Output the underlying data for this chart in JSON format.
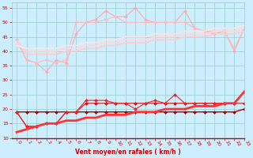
{
  "x": [
    0,
    1,
    2,
    3,
    4,
    5,
    6,
    7,
    8,
    9,
    10,
    11,
    12,
    13,
    14,
    15,
    16,
    17,
    18,
    19,
    20,
    21,
    22,
    23
  ],
  "series": [
    {
      "label": "line1_light_pink_jagged",
      "color": "#ffaaaa",
      "lw": 0.8,
      "marker": "D",
      "markersize": 2,
      "y": [
        44,
        37,
        36,
        33,
        37,
        36,
        46,
        50,
        51,
        54,
        52,
        52,
        55,
        51,
        50,
        50,
        50,
        54,
        48,
        47,
        46,
        47,
        40,
        48
      ]
    },
    {
      "label": "line2_lighter_pink_jagged",
      "color": "#ffbbbb",
      "lw": 0.8,
      "marker": "D",
      "markersize": 2,
      "y": [
        44,
        37,
        36,
        37,
        36,
        37,
        50,
        50,
        50,
        51,
        52,
        50,
        50,
        50,
        50,
        50,
        50,
        50,
        48,
        47,
        47,
        47,
        41,
        48
      ]
    },
    {
      "label": "line3_smooth1",
      "color": "#ffcccc",
      "lw": 1.2,
      "marker": null,
      "markersize": 0,
      "y": [
        44,
        39,
        39,
        39,
        39,
        40,
        40,
        41,
        41,
        42,
        42,
        43,
        43,
        43,
        44,
        44,
        44,
        45,
        45,
        45,
        46,
        46,
        46,
        47
      ]
    },
    {
      "label": "line4_smooth2",
      "color": "#ffd8d8",
      "lw": 1.2,
      "marker": null,
      "markersize": 0,
      "y": [
        43,
        40,
        40,
        40,
        40,
        41,
        41,
        42,
        42,
        43,
        43,
        44,
        44,
        44,
        45,
        45,
        45,
        46,
        46,
        46,
        47,
        47,
        47,
        48
      ]
    },
    {
      "label": "line5_smooth3",
      "color": "#ffe4e4",
      "lw": 1.2,
      "marker": null,
      "markersize": 0,
      "y": [
        42,
        41,
        41,
        41,
        41,
        42,
        42,
        43,
        43,
        44,
        44,
        45,
        45,
        45,
        46,
        46,
        46,
        47,
        47,
        47,
        48,
        48,
        48,
        49
      ]
    },
    {
      "label": "line6_dark_red_flat",
      "color": "#aa0000",
      "lw": 1.0,
      "marker": "D",
      "markersize": 2,
      "y": [
        19,
        19,
        19,
        19,
        19,
        19,
        19,
        19,
        19,
        19,
        19,
        19,
        19,
        19,
        19,
        19,
        19,
        19,
        19,
        19,
        19,
        19,
        19,
        20
      ]
    },
    {
      "label": "line7_red_mid1",
      "color": "#cc1111",
      "lw": 0.8,
      "marker": "D",
      "markersize": 2,
      "y": [
        19,
        14,
        14,
        15,
        15,
        19,
        19,
        22,
        22,
        22,
        22,
        22,
        22,
        22,
        22,
        22,
        22,
        22,
        22,
        22,
        22,
        22,
        22,
        22
      ]
    },
    {
      "label": "line8_red_mid2",
      "color": "#ee2222",
      "lw": 0.8,
      "marker": "D",
      "markersize": 2,
      "y": [
        19,
        14,
        14,
        15,
        15,
        19,
        19,
        23,
        23,
        23,
        22,
        22,
        20,
        22,
        23,
        22,
        25,
        22,
        22,
        22,
        22,
        22,
        22,
        26
      ]
    },
    {
      "label": "line9_red_diagonal",
      "color": "#ff3333",
      "lw": 2.0,
      "marker": null,
      "markersize": 0,
      "y": [
        12,
        13,
        14,
        15,
        15,
        16,
        16,
        17,
        17,
        18,
        18,
        18,
        19,
        19,
        19,
        20,
        20,
        20,
        21,
        21,
        21,
        22,
        22,
        26
      ]
    }
  ],
  "xlim": [
    -0.5,
    23
  ],
  "ylim": [
    10,
    57
  ],
  "yticks": [
    10,
    15,
    20,
    25,
    30,
    35,
    40,
    45,
    50,
    55
  ],
  "xticks": [
    0,
    1,
    2,
    3,
    4,
    5,
    6,
    7,
    8,
    9,
    10,
    11,
    12,
    13,
    14,
    15,
    16,
    17,
    18,
    19,
    20,
    21,
    22,
    23
  ],
  "xlabel": "Vent moyen/en rafales ( km/h )",
  "background_color": "#cceeff",
  "grid_color": "#99cccc",
  "tick_color": "#cc0000",
  "label_color": "#cc0000"
}
